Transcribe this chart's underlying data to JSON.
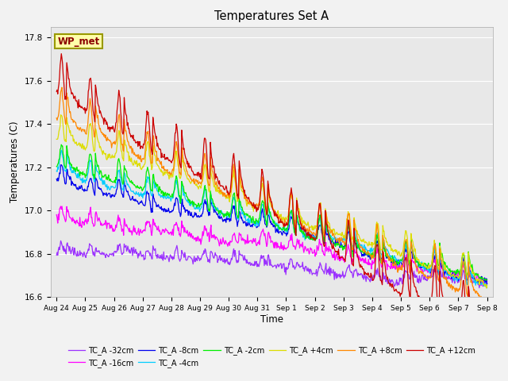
{
  "title": "Temperatures Set A",
  "xlabel": "Time",
  "ylabel": "Temperatures (C)",
  "ylim": [
    16.6,
    17.85
  ],
  "series": [
    {
      "label": "TC_A -32cm",
      "color": "#9B30FF",
      "base": 16.775,
      "amp": 0.045,
      "trend": -0.005,
      "noise_amp": 0.025
    },
    {
      "label": "TC_A -16cm",
      "color": "#FF00FF",
      "base": 16.975,
      "amp": 0.055,
      "trend": -0.02,
      "noise_amp": 0.025
    },
    {
      "label": "TC_A -8cm",
      "color": "#0000EE",
      "base": 17.125,
      "amp": 0.075,
      "trend": -0.03,
      "noise_amp": 0.02
    },
    {
      "label": "TC_A -4cm",
      "color": "#00CCFF",
      "base": 17.185,
      "amp": 0.09,
      "trend": -0.035,
      "noise_amp": 0.018
    },
    {
      "label": "TC_A -2cm",
      "color": "#00EE00",
      "base": 17.215,
      "amp": 0.105,
      "trend": -0.038,
      "noise_amp": 0.018
    },
    {
      "label": "TC_A +4cm",
      "color": "#DDDD00",
      "base": 17.33,
      "amp": 0.12,
      "trend": -0.045,
      "noise_amp": 0.018
    },
    {
      "label": "TC_A +8cm",
      "color": "#FF8800",
      "base": 17.4,
      "amp": 0.15,
      "trend": -0.055,
      "noise_amp": 0.02
    },
    {
      "label": "TC_A +12cm",
      "color": "#CC0000",
      "base": 17.53,
      "amp": 0.185,
      "trend": -0.075,
      "noise_amp": 0.02
    }
  ],
  "xtick_labels": [
    "Aug 24",
    "Aug 25",
    "Aug 26",
    "Aug 27",
    "Aug 28",
    "Aug 29",
    "Aug 30",
    "Aug 31",
    "Sep 1",
    "Sep 2",
    "Sep 3",
    "Sep 4",
    "Sep 5",
    "Sep 6",
    "Sep 7",
    "Sep 8"
  ],
  "xtick_positions": [
    0,
    1,
    2,
    3,
    4,
    5,
    6,
    7,
    8,
    9,
    10,
    11,
    12,
    13,
    14,
    15
  ],
  "wp_met_label": "WP_met",
  "plot_bg_color": "#e8e8e8",
  "fig_bg_color": "#f2f2f2",
  "n_points": 720,
  "spike_sharpness": 3.5
}
